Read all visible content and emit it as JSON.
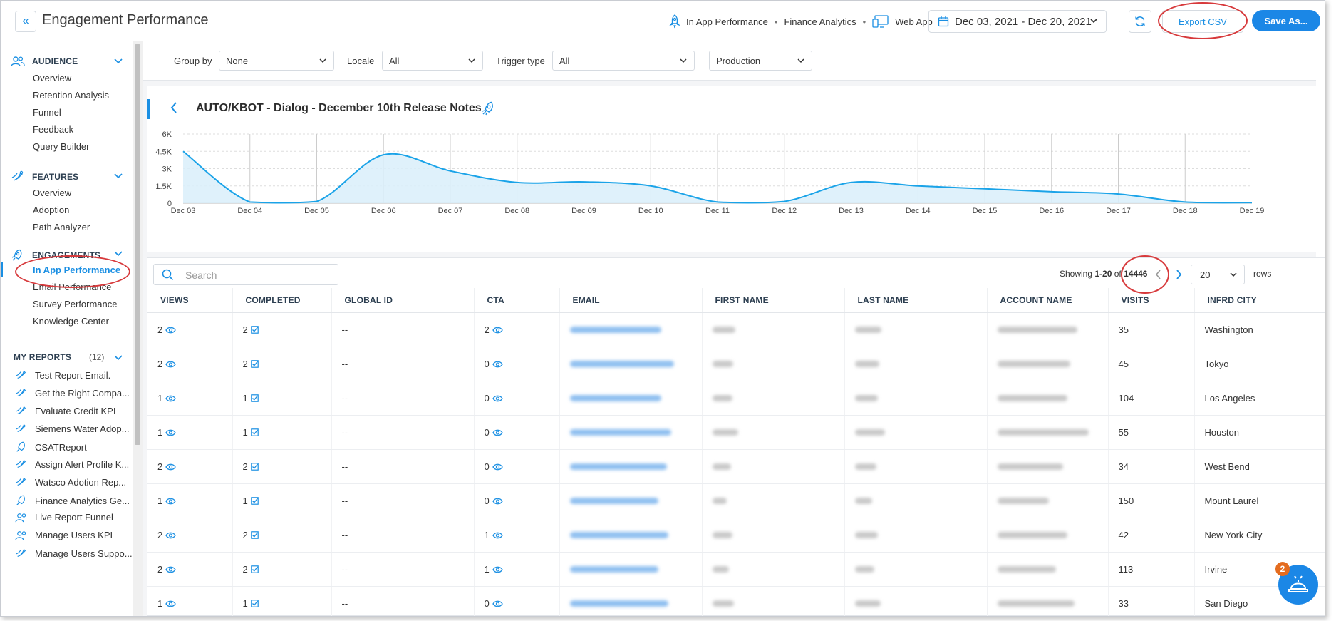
{
  "header": {
    "title": "Engagement Performance",
    "context": [
      "In App Performance",
      "Finance Analytics",
      "Web App"
    ],
    "date_range": "Dec 03, 2021 - Dec 20, 2021",
    "export_label": "Export CSV",
    "save_label": "Save As..."
  },
  "sidebar": {
    "audience": {
      "title": "AUDIENCE",
      "items": [
        "Overview",
        "Retention Analysis",
        "Funnel",
        "Feedback",
        "Query Builder"
      ]
    },
    "features": {
      "title": "FEATURES",
      "items": [
        "Overview",
        "Adoption",
        "Path Analyzer"
      ]
    },
    "engagements": {
      "title": "ENGAGEMENTS",
      "items": [
        "In App Performance",
        "Email Performance",
        "Survey Performance",
        "Knowledge Center"
      ],
      "active": "In App Performance"
    },
    "my_reports": {
      "title": "MY REPORTS",
      "count": "(12)",
      "items": [
        "Test Report Email.",
        "Get the Right Compa...",
        "Evaluate Credit KPI",
        "Siemens Water Adop...",
        "CSATReport",
        "Assign Alert Profile K...",
        "Watsco Adotion Rep...",
        "Finance Analytics Ge...",
        "Live Report Funnel",
        "Manage Users KPI",
        "Manage Users Suppo..."
      ]
    }
  },
  "filters": {
    "group_by_label": "Group by",
    "group_by_value": "None",
    "locale_label": "Locale",
    "locale_value": "All",
    "trigger_label": "Trigger type",
    "trigger_value": "All",
    "env_value": "Production"
  },
  "chart": {
    "title": "AUTO/KBOT - Dialog - December 10th Release Notes"
  },
  "chart_data": {
    "type": "area",
    "title": "AUTO/KBOT - Dialog - December 10th Release Notes",
    "x": [
      "Dec 03",
      "Dec 04",
      "Dec 05",
      "Dec 06",
      "Dec 07",
      "Dec 08",
      "Dec 09",
      "Dec 10",
      "Dec 11",
      "Dec 12",
      "Dec 13",
      "Dec 14",
      "Dec 15",
      "Dec 16",
      "Dec 17",
      "Dec 18",
      "Dec 19"
    ],
    "values": [
      4500,
      100,
      150,
      4200,
      2800,
      1800,
      1850,
      1500,
      100,
      150,
      1800,
      1500,
      1250,
      1000,
      800,
      100,
      50
    ],
    "yticks": [
      "0",
      "1.5K",
      "3K",
      "4.5K",
      "6K"
    ],
    "ylim": [
      0,
      6000
    ],
    "grid": true,
    "color": "#1aa3e8"
  },
  "table": {
    "search_placeholder": "Search",
    "showing_prefix": "Showing",
    "showing_range": "1-20",
    "showing_of": "of",
    "total": "14446",
    "rows_per_page": "20",
    "rows_label": "rows",
    "columns": [
      "VIEWS",
      "COMPLETED",
      "GLOBAL ID",
      "CTA",
      "EMAIL",
      "FIRST NAME",
      "LAST NAME",
      "ACCOUNT NAME",
      "VISITS",
      "INFRD CITY"
    ],
    "rows": [
      {
        "views": "2",
        "completed": "2",
        "global_id": "--",
        "cta": "2",
        "visits": "35",
        "city": "Washington"
      },
      {
        "views": "2",
        "completed": "2",
        "global_id": "--",
        "cta": "0",
        "visits": "45",
        "city": "Tokyo"
      },
      {
        "views": "1",
        "completed": "1",
        "global_id": "--",
        "cta": "0",
        "visits": "104",
        "city": "Los Angeles"
      },
      {
        "views": "1",
        "completed": "1",
        "global_id": "--",
        "cta": "0",
        "visits": "55",
        "city": "Houston"
      },
      {
        "views": "2",
        "completed": "2",
        "global_id": "--",
        "cta": "0",
        "visits": "34",
        "city": "West Bend"
      },
      {
        "views": "1",
        "completed": "1",
        "global_id": "--",
        "cta": "0",
        "visits": "150",
        "city": "Mount Laurel"
      },
      {
        "views": "2",
        "completed": "2",
        "global_id": "--",
        "cta": "1",
        "visits": "42",
        "city": "New York City"
      },
      {
        "views": "2",
        "completed": "2",
        "global_id": "--",
        "cta": "1",
        "visits": "113",
        "city": "Irvine"
      },
      {
        "views": "1",
        "completed": "1",
        "global_id": "--",
        "cta": "0",
        "visits": "33",
        "city": "San Diego"
      }
    ]
  },
  "helper": {
    "badge": "2"
  },
  "colors": {
    "accent": "#1a8fe3",
    "highlight_ring": "#d7393b",
    "badge": "#e46c1f"
  },
  "icons": [
    "double-chevron-left-icon",
    "rocket-icon",
    "monitor-icon",
    "calendar-icon",
    "chevron-down-icon",
    "refresh-icon",
    "users-icon",
    "features-icon",
    "engagement-icon",
    "search-icon",
    "chevron-left-icon",
    "chevron-right-icon",
    "eye-icon",
    "checkbox-icon",
    "bell-icon"
  ]
}
